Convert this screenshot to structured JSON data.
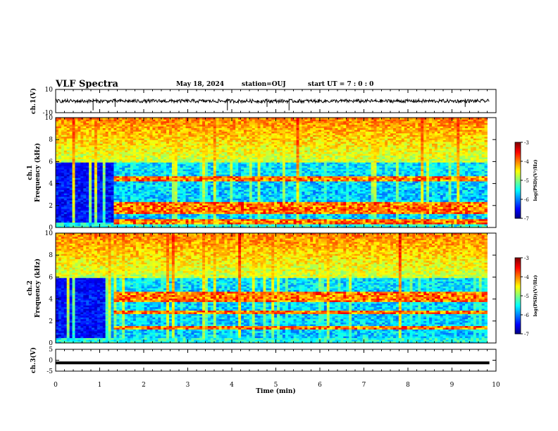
{
  "header": {
    "title": "VLF Spectra",
    "date": "May 18, 2024",
    "station": "station=OUJ",
    "start": "start  UT =   7 : 0  : 0"
  },
  "chart_data": [
    {
      "type": "line",
      "panel": "ch1-waveform",
      "ylabel": "ch.1(V)",
      "ylim": [
        -10,
        10
      ],
      "yticks": [
        "10",
        "-10"
      ],
      "xlim": [
        0,
        10
      ],
      "baseline": 0,
      "noise_amplitude": 1.5,
      "spikes_min": [
        0.85,
        1.35,
        3.9,
        4.8,
        5.3,
        9.3
      ]
    },
    {
      "type": "heatmap",
      "panel": "ch1-spectrogram",
      "ylabel": "ch.1\nFrequency (kHz)",
      "ylim": [
        0,
        10
      ],
      "yticks": [
        "0",
        "2",
        "4",
        "6",
        "8",
        "10"
      ],
      "xlim": [
        0,
        9.8
      ],
      "colorbar": {
        "label": "log(PSD)(V²/Hz)",
        "ticks": [
          "-3",
          "-4",
          "-5",
          "-6",
          "-7"
        ],
        "range": [
          -7,
          -3
        ]
      },
      "transition_min": 1.35,
      "bands_khz": [
        0.6,
        1.4,
        1.8,
        2.2,
        4.4
      ]
    },
    {
      "type": "heatmap",
      "panel": "ch2-spectrogram",
      "ylabel": "ch.2\nFrequency (kHz)",
      "ylim": [
        0,
        10
      ],
      "yticks": [
        "0",
        "2",
        "4",
        "6",
        "8",
        "10"
      ],
      "xlim": [
        0,
        9.8
      ],
      "colorbar": {
        "label": "log(PSD)(V²/Hz)",
        "ticks": [
          "-3",
          "-4",
          "-5",
          "-6",
          "-7"
        ],
        "range": [
          -7,
          -3
        ]
      },
      "transition_min": 1.35,
      "bands_khz": [
        1.4,
        2.8,
        4.0,
        4.4
      ]
    },
    {
      "type": "line",
      "panel": "ch3-waveform",
      "ylabel": "ch.3(V)",
      "ylim": [
        -5,
        5
      ],
      "yticks": [
        "5",
        "0",
        "-5"
      ],
      "xlim": [
        0,
        10
      ],
      "value": -1.2
    }
  ],
  "xaxis": {
    "label": "Time (min)",
    "ticks": [
      "0",
      "1",
      "2",
      "3",
      "4",
      "5",
      "6",
      "7",
      "8",
      "9",
      "10"
    ]
  }
}
